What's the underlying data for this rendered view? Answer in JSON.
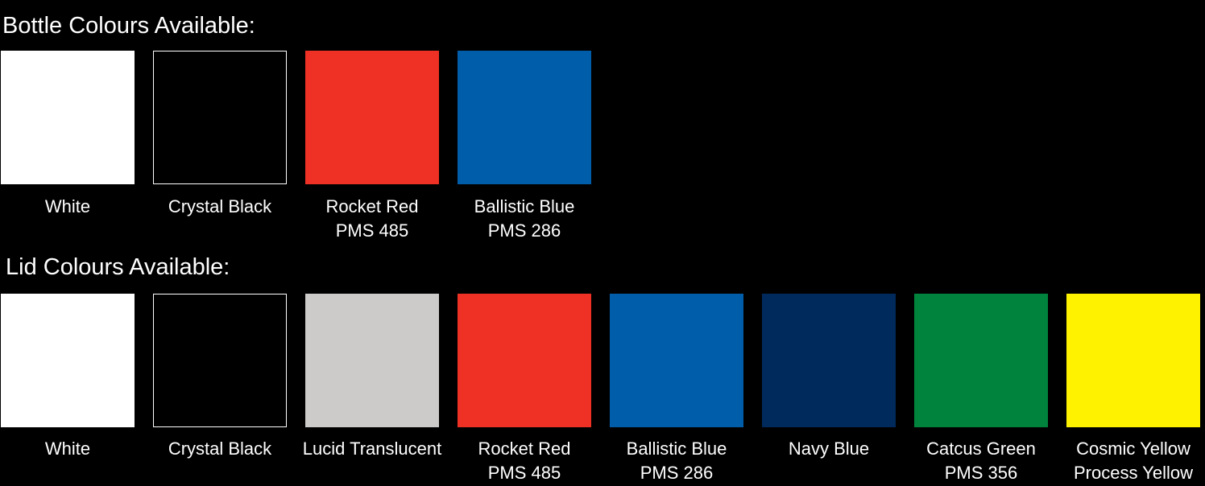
{
  "bottle": {
    "heading": "Bottle Colours Available:",
    "swatches": [
      {
        "name": "White",
        "code": "",
        "color": "#ffffff"
      },
      {
        "name": "Crystal Black",
        "code": "",
        "color": "#000000"
      },
      {
        "name": "Rocket Red",
        "code": "PMS 485",
        "color": "#ee3124"
      },
      {
        "name": "Ballistic Blue",
        "code": "PMS 286",
        "color": "#005daa"
      }
    ]
  },
  "lid": {
    "heading": "Lid Colours Available:",
    "swatches": [
      {
        "name": "White",
        "code": "",
        "color": "#ffffff"
      },
      {
        "name": "Crystal Black",
        "code": "",
        "color": "#000000"
      },
      {
        "name": "Lucid Translucent",
        "code": "",
        "color": "#cdcbca"
      },
      {
        "name": "Rocket Red",
        "code": "PMS 485",
        "color": "#ee3124"
      },
      {
        "name": "Ballistic Blue",
        "code": "PMS 286",
        "color": "#005daa"
      },
      {
        "name": "Navy Blue",
        "code": "",
        "color": "#002a5c"
      },
      {
        "name": "Catcus Green",
        "code": "PMS 356",
        "color": "#00843d"
      },
      {
        "name": "Cosmic Yellow",
        "code": "Process Yellow",
        "color": "#fff200"
      }
    ]
  }
}
